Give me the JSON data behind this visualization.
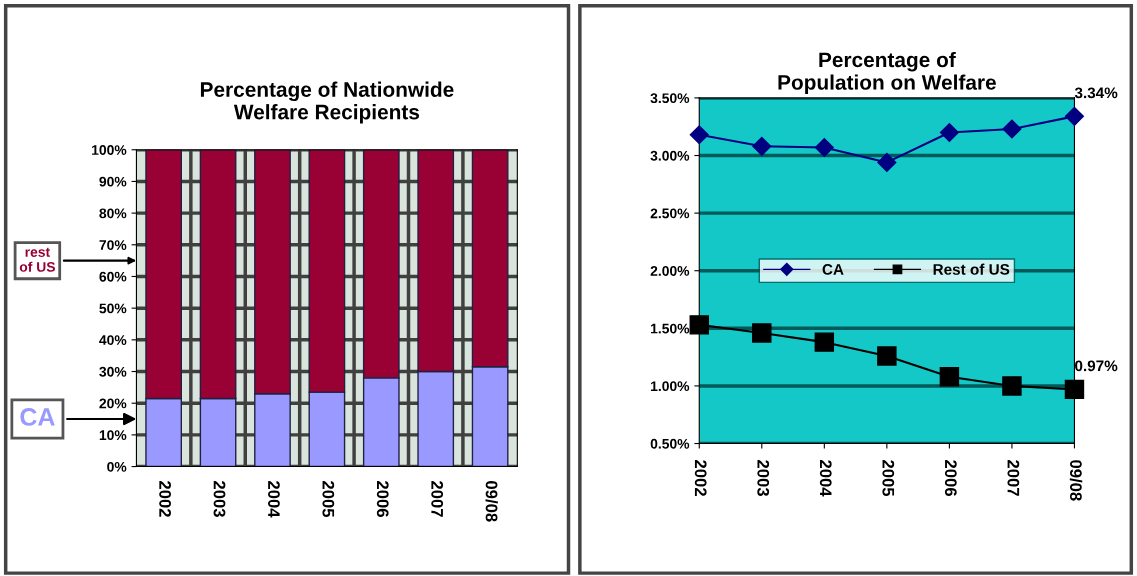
{
  "chart_data": [
    {
      "type": "bar",
      "title": "Percentage of Nationwide\nWelfare Recipients",
      "stacked": true,
      "categories": [
        "2002",
        "2003",
        "2004",
        "2005",
        "2006",
        "2007",
        "09/08"
      ],
      "series": [
        {
          "name": "CA",
          "color": "#9999ff",
          "values": [
            21.5,
            21.5,
            23,
            23.5,
            28,
            30,
            31.5
          ]
        },
        {
          "name": "rest of US",
          "color": "#990033",
          "values": [
            78.5,
            78.5,
            77,
            76.5,
            72,
            70,
            68.5
          ]
        }
      ],
      "ylim": [
        0,
        100
      ],
      "yticks": [
        {
          "value": 0,
          "label": "0%"
        },
        {
          "value": 10,
          "label": "10%"
        },
        {
          "value": 20,
          "label": "20%"
        },
        {
          "value": 30,
          "label": "30%"
        },
        {
          "value": 40,
          "label": "40%"
        },
        {
          "value": 50,
          "label": "50%"
        },
        {
          "value": 60,
          "label": "60%"
        },
        {
          "value": 70,
          "label": "70%"
        },
        {
          "value": 80,
          "label": "80%"
        },
        {
          "value": 90,
          "label": "90%"
        },
        {
          "value": 100,
          "label": "100%"
        }
      ],
      "grid": true,
      "legend": false
    },
    {
      "type": "line",
      "title": "Percentage of\nPopulation on Welfare",
      "categories": [
        "2002",
        "2003",
        "2004",
        "2005",
        "2006",
        "2007",
        "09/08"
      ],
      "series": [
        {
          "name": "CA",
          "color": "#000080",
          "marker": "diamond",
          "values": [
            3.18,
            3.08,
            3.07,
            2.94,
            3.2,
            3.23,
            3.34
          ]
        },
        {
          "name": "Rest of US",
          "color": "#000000",
          "marker": "square",
          "values": [
            1.53,
            1.46,
            1.38,
            1.26,
            1.08,
            1.0,
            0.97
          ]
        }
      ],
      "ylim": [
        0.5,
        3.5
      ],
      "yticks": [
        {
          "value": 0.5,
          "label": "0.50%"
        },
        {
          "value": 1.0,
          "label": "1.00%"
        },
        {
          "value": 1.5,
          "label": "1.50%"
        },
        {
          "value": 2.0,
          "label": "2.00%"
        },
        {
          "value": 2.5,
          "label": "2.50%"
        },
        {
          "value": 3.0,
          "label": "3.00%"
        },
        {
          "value": 3.5,
          "label": "3.50%"
        }
      ],
      "annotations": [
        {
          "text": "3.34%",
          "x": "09/08",
          "y": 3.34
        },
        {
          "text": "0.97%",
          "x": "09/08",
          "y": 0.97
        }
      ],
      "grid": "y",
      "legend": "center"
    }
  ]
}
